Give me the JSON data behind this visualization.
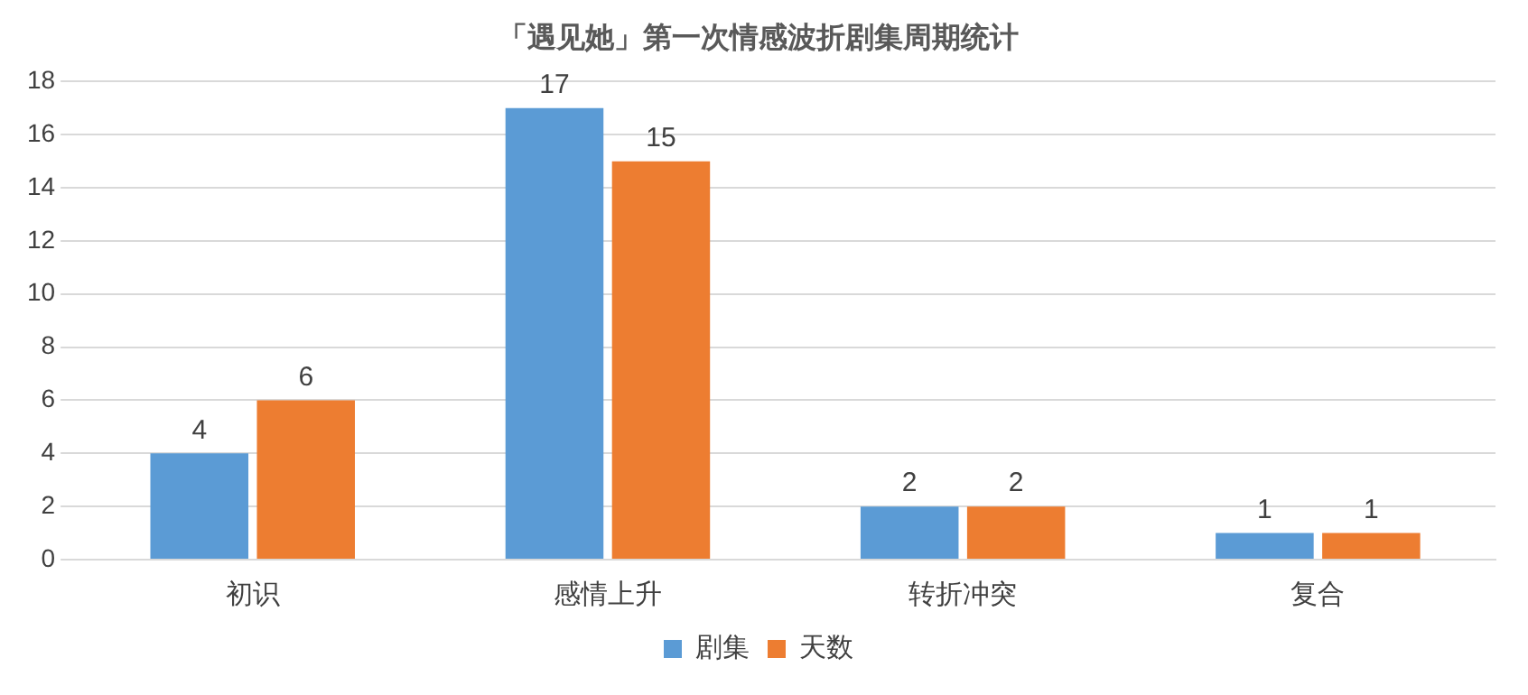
{
  "chart_data": {
    "type": "bar",
    "title": "「遇见她」第一次情感波折剧集周期统计",
    "categories": [
      "初识",
      "感情上升",
      "转折冲突",
      "复合"
    ],
    "series": [
      {
        "name": "剧集",
        "color": "#5b9bd5",
        "values": [
          4,
          17,
          2,
          1
        ]
      },
      {
        "name": "天数",
        "color": "#ed7d31",
        "values": [
          6,
          15,
          2,
          1
        ]
      }
    ],
    "ylim": [
      0,
      18
    ],
    "yticks": [
      0,
      2,
      4,
      6,
      8,
      10,
      12,
      14,
      16,
      18
    ],
    "grid": "y",
    "legend": "bottom",
    "data_labels": true
  }
}
